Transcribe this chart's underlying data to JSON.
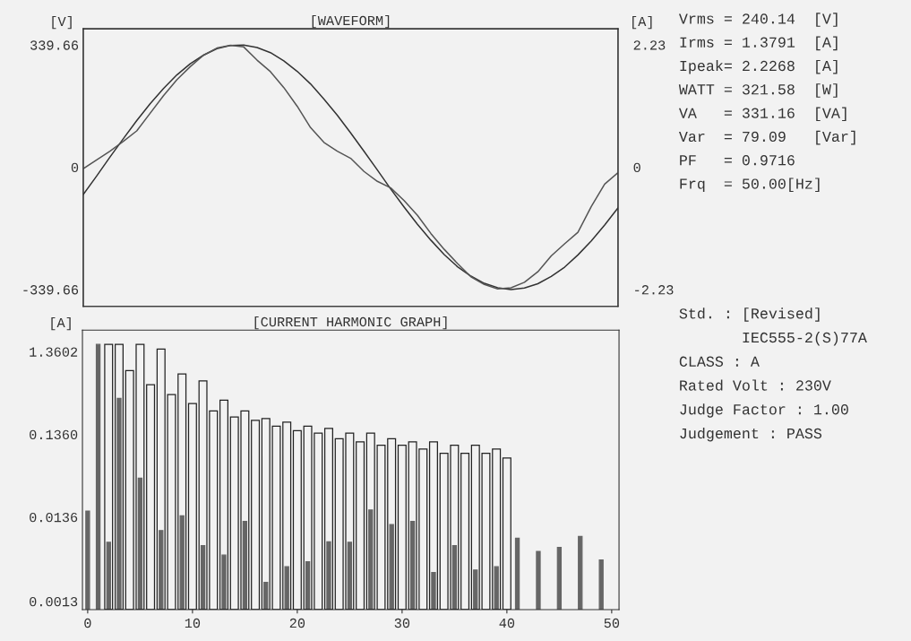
{
  "chart_data": [
    {
      "type": "line",
      "title": "[WAVEFORM]",
      "ylabel": "[V]",
      "y2label": "[A]",
      "categories": [
        null,
        null,
        null,
        null,
        null,
        null,
        null,
        null,
        null,
        null,
        null,
        null,
        null,
        null,
        null,
        null,
        null,
        null,
        null,
        null,
        null,
        null,
        null,
        null,
        null,
        null,
        null,
        null,
        null,
        null,
        null,
        null,
        null,
        null,
        null,
        null,
        null,
        null,
        null,
        null,
        null
      ],
      "series": [
        {
          "color": "#333333",
          "values": [
            -76,
            -25,
            28,
            79,
            129,
            176,
            218,
            256,
            287,
            311,
            329,
            338,
            339,
            332,
            318,
            295,
            266,
            231,
            189,
            144,
            95,
            44,
            -8,
            -61,
            -111,
            -159,
            -203,
            -243,
            -277,
            -303,
            -323,
            -335,
            -340,
            -336,
            -324,
            -304,
            -278,
            -244,
            -205,
            -161,
            -113
          ]
        },
        {
          "color": "#555555",
          "axis": "y2",
          "values": [
            -0.03,
            0.13,
            0.29,
            0.47,
            0.66,
            0.98,
            1.3,
            1.59,
            1.83,
            2.04,
            2.17,
            2.22,
            2.19,
            1.95,
            1.74,
            1.45,
            1.11,
            0.72,
            0.45,
            0.29,
            0.16,
            -0.08,
            -0.26,
            -0.38,
            -0.61,
            -0.88,
            -1.21,
            -1.5,
            -1.76,
            -2.0,
            -2.14,
            -2.22,
            -2.2,
            -2.1,
            -1.91,
            -1.62,
            -1.4,
            -1.19,
            -0.72,
            -0.31,
            -0.1
          ]
        }
      ],
      "ylim": [
        -387,
        384
      ],
      "yticks": [
        339.66,
        0,
        -339.66
      ],
      "y2lim": [
        -2.54,
        2.52
      ],
      "y2ticks": [
        2.23,
        0,
        -2.23
      ],
      "grid": false,
      "marker": "none",
      "line_style": "solid"
    },
    {
      "type": "bar",
      "title": "[CURRENT HARMONIC GRAPH]",
      "ylabel": "[A]",
      "log": true,
      "series": [
        {
          "color": "#666666",
          "x": [
            0,
            1,
            2,
            3,
            5,
            7,
            9,
            11,
            13,
            15,
            17,
            19,
            21,
            23,
            25,
            27,
            29,
            31,
            33,
            35,
            37,
            39,
            41,
            43,
            45,
            47,
            49
          ],
          "values": [
            0.016,
            1.66,
            0.0067,
            0.37,
            0.04,
            0.0093,
            0.014,
            0.0061,
            0.0047,
            0.012,
            0.0022,
            0.0034,
            0.0039,
            0.0068,
            0.0067,
            0.0165,
            0.011,
            0.012,
            0.0029,
            0.0061,
            0.0031,
            0.0034,
            0.0075,
            0.0052,
            0.0058,
            0.0079,
            0.0041
          ]
        },
        {
          "color": "#222222",
          "x": [
            2,
            3,
            4,
            5,
            6,
            7,
            8,
            9,
            10,
            11,
            12,
            13,
            14,
            15,
            16,
            17,
            18,
            19,
            20,
            21,
            22,
            23,
            24,
            25,
            26,
            27,
            28,
            29,
            30,
            31,
            32,
            33,
            34,
            35,
            36,
            37,
            38,
            39,
            40
          ],
          "values": [
            1.66,
            1.66,
            0.8,
            1.66,
            0.54,
            1.46,
            0.41,
            0.73,
            0.32,
            0.6,
            0.26,
            0.35,
            0.22,
            0.26,
            0.2,
            0.21,
            0.17,
            0.19,
            0.15,
            0.17,
            0.14,
            0.16,
            0.12,
            0.14,
            0.11,
            0.14,
            0.1,
            0.12,
            0.1,
            0.11,
            0.09,
            0.11,
            0.08,
            0.1,
            0.08,
            0.1,
            0.08,
            0.09,
            0.07
          ]
        }
      ],
      "xlim": [
        -0.5,
        50.7
      ],
      "xticks": [
        0,
        10,
        20,
        30,
        40,
        50
      ],
      "ylim": [
        0.00103,
        2.47
      ],
      "yticks": [
        0.0013,
        0.0136,
        {
          "value": 0.136,
          "label": "0.1360"
        },
        1.3602
      ],
      "grid": false
    },
    {
      "type": "other",
      "annotations": [
        "Vrms = 240.14  [V]",
        "Irms = 1.3791  [A]",
        "Ipeak= 2.2268  [A]",
        "WATT = 321.58  [W]",
        "VA   = 331.16  [VA]",
        "Var  = 79.09   [Var]",
        "PF   = 0.9716",
        "Frq  = 50.00[Hz]"
      ]
    },
    {
      "type": "other",
      "annotations": [
        "Std. : [Revised]",
        "       IEC555-2(S)77A",
        "CLASS : A",
        "Rated Volt : 230V",
        "Judge Factor : 1.00",
        "Judgement : PASS"
      ]
    }
  ]
}
